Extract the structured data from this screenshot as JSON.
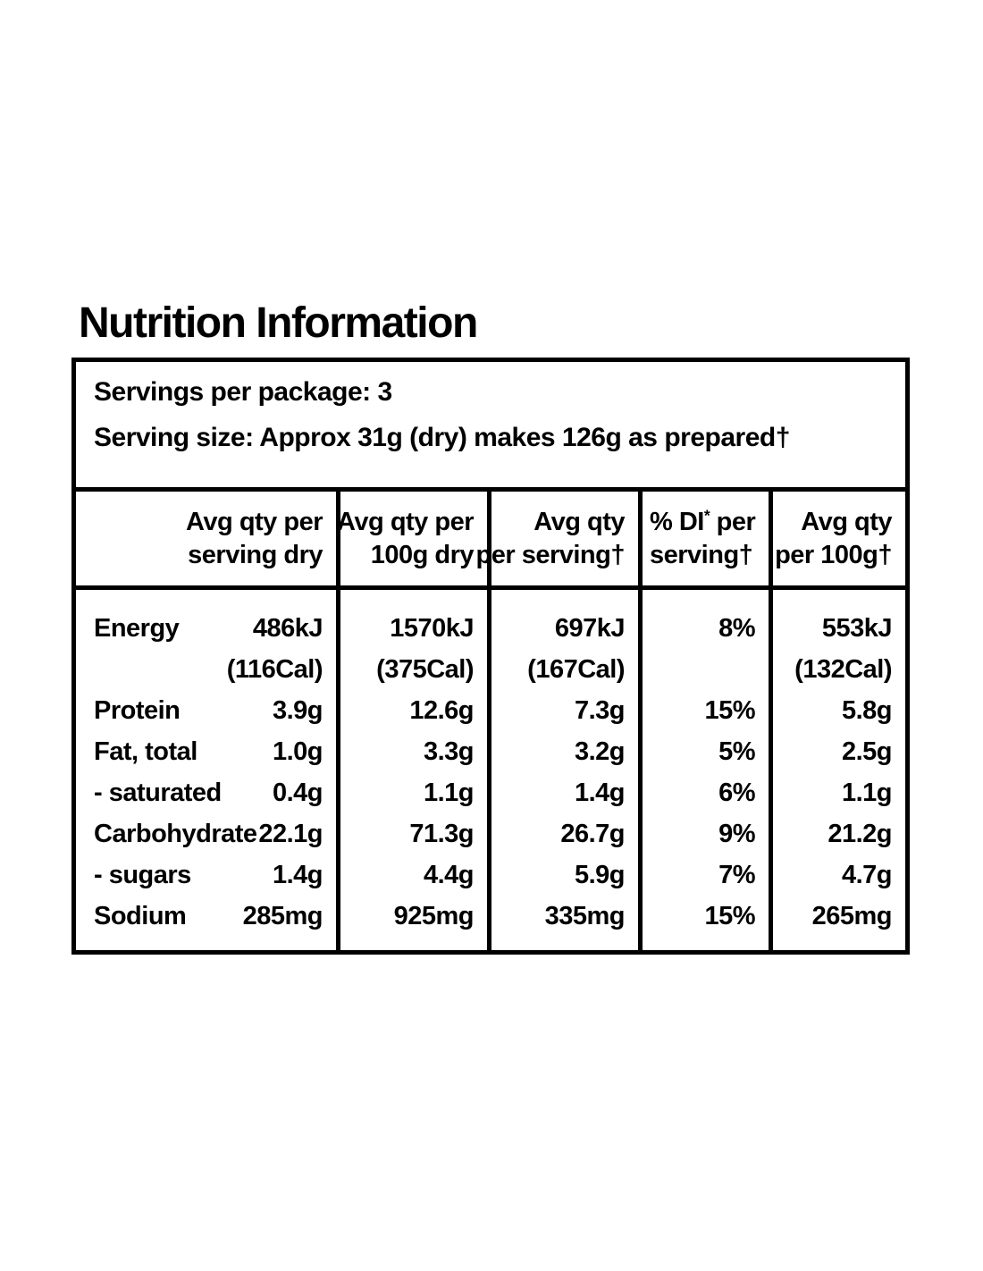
{
  "title": "Nutrition Information",
  "serving_info": {
    "servings_per_package": "Servings per package: 3",
    "serving_size": "Serving size: Approx 31g (dry) makes 126g as prepared†"
  },
  "table": {
    "headers": [
      {
        "line1": "Avg qty per",
        "line2": "serving dry"
      },
      {
        "line1": "Avg qty per",
        "line2": "100g dry"
      },
      {
        "line1": "Avg qty",
        "line2": "per serving†"
      },
      {
        "line1_pre": "% DI",
        "line1_sup": "*",
        "line1_post": " per",
        "line2": "serving†"
      },
      {
        "line1": "Avg qty",
        "line2": "per 100g†"
      }
    ],
    "rows": [
      {
        "label": "Energy",
        "values": [
          "486kJ",
          "1570kJ",
          "697kJ",
          "8%",
          "553kJ"
        ]
      },
      {
        "label": "",
        "values": [
          "(116Cal)",
          "(375Cal)",
          "(167Cal)",
          "",
          "(132Cal)"
        ]
      },
      {
        "label": "Protein",
        "values": [
          "3.9g",
          "12.6g",
          "7.3g",
          "15%",
          "5.8g"
        ]
      },
      {
        "label": "Fat, total",
        "values": [
          "1.0g",
          "3.3g",
          "3.2g",
          "5%",
          "2.5g"
        ]
      },
      {
        "label": "- saturated",
        "values": [
          "0.4g",
          "1.1g",
          "1.4g",
          "6%",
          "1.1g"
        ]
      },
      {
        "label": "Carbohydrate",
        "values": [
          "22.1g",
          "71.3g",
          "26.7g",
          "9%",
          "21.2g"
        ]
      },
      {
        "label": "- sugars",
        "values": [
          "1.4g",
          "4.4g",
          "5.9g",
          "7%",
          "4.7g"
        ]
      },
      {
        "label": "Sodium",
        "values": [
          "285mg",
          "925mg",
          "335mg",
          "15%",
          "265mg"
        ]
      }
    ]
  },
  "colors": {
    "text": "#000000",
    "background": "#ffffff",
    "border": "#000000"
  }
}
